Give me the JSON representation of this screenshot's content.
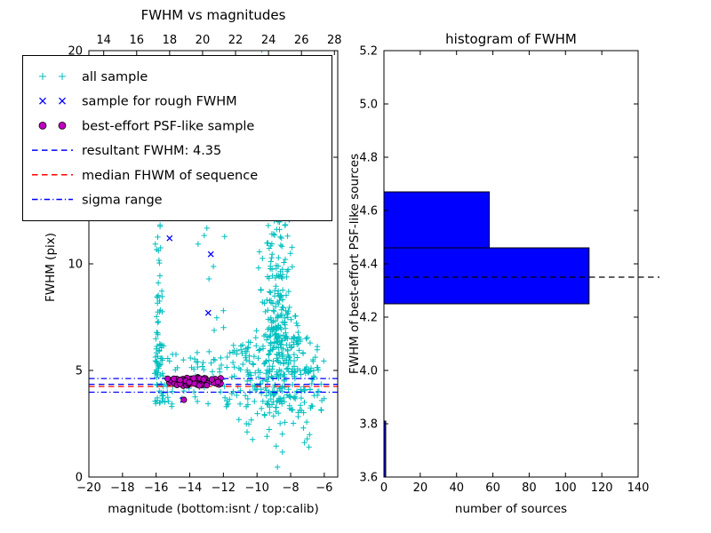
{
  "figure": {
    "background": "#ffffff"
  },
  "chart_data": [
    {
      "type": "scatter",
      "title": "FWHM vs magnitudes",
      "xlabel": "magnitude (bottom:isnt / top:calib)",
      "ylabel": "FWHM (pix)",
      "xlim": [
        -20,
        -5.2
      ],
      "top_xlim": [
        13.1,
        28.2
      ],
      "ylim": [
        0,
        20
      ],
      "x_ticks_bottom": [
        {
          "v": -20,
          "label": "−20"
        },
        {
          "v": -18,
          "label": "−18"
        },
        {
          "v": -16,
          "label": "−16"
        },
        {
          "v": -14,
          "label": "−14"
        },
        {
          "v": -12,
          "label": "−12"
        },
        {
          "v": -10,
          "label": "−10"
        },
        {
          "v": -8,
          "label": "−8"
        },
        {
          "v": -6,
          "label": "−6"
        }
      ],
      "x_ticks_top": [
        {
          "v": 14,
          "label": "14"
        },
        {
          "v": 16,
          "label": "16"
        },
        {
          "v": 18,
          "label": "18"
        },
        {
          "v": 20,
          "label": "20"
        },
        {
          "v": 22,
          "label": "22"
        },
        {
          "v": 24,
          "label": "24"
        },
        {
          "v": 26,
          "label": "26"
        },
        {
          "v": 28,
          "label": "28"
        }
      ],
      "y_ticks": [
        {
          "v": 0,
          "label": "0"
        },
        {
          "v": 5,
          "label": "5"
        },
        {
          "v": 10,
          "label": "10"
        },
        {
          "v": 15,
          "label": "15"
        },
        {
          "v": 20,
          "label": "20"
        }
      ],
      "legend": {
        "items": [
          {
            "label": "all sample",
            "type": "marker",
            "marker": "plus",
            "color": "#00bfbf"
          },
          {
            "label": "sample for rough FWHM",
            "type": "marker",
            "marker": "x",
            "color": "#0000ff"
          },
          {
            "label": "best-effort PSF-like sample",
            "type": "marker",
            "marker": "circle",
            "color": "#bf00bf"
          },
          {
            "label": "resultant FWHM: 4.35",
            "type": "line",
            "dash": "dashed",
            "color": "#0000ff"
          },
          {
            "label": "median FHWM of sequence",
            "type": "line",
            "dash": "dashed",
            "color": "#ff0000"
          },
          {
            "label": "sigma range",
            "type": "line",
            "dash": "dashdot",
            "color": "#0000ff"
          }
        ]
      },
      "hlines": [
        {
          "y": 4.35,
          "style": "dashed",
          "color": "#0000ff"
        },
        {
          "y": 4.25,
          "style": "dashed",
          "color": "#ff0000"
        },
        {
          "y": 4.62,
          "style": "dashdot",
          "color": "#0000ff"
        },
        {
          "y": 3.98,
          "style": "dashdot",
          "color": "#0000ff"
        }
      ],
      "scatter": {
        "seed": 42,
        "all_sample_color": "#00bfbf",
        "all_sample_clusters": [
          {
            "shape": "uniform",
            "x": [
              -16.08,
              -15.55
            ],
            "y": [
              3.4,
              6.5
            ],
            "n": 55
          },
          {
            "shape": "uniform",
            "x": [
              -16.05,
              -15.6
            ],
            "y": [
              6.5,
              12.5
            ],
            "n": 30
          },
          {
            "shape": "uniform",
            "x": [
              -16.0,
              -15.65
            ],
            "y": [
              12.5,
              19.9
            ],
            "n": 9
          },
          {
            "shape": "uniform",
            "x": [
              -15.55,
              -12.0
            ],
            "y": [
              3.3,
              5.9
            ],
            "n": 55
          },
          {
            "shape": "uniform",
            "x": [
              -12.0,
              -9.9
            ],
            "y": [
              3.2,
              6.3
            ],
            "n": 55
          },
          {
            "shape": "gauss",
            "cx": -8.75,
            "cy": 6.3,
            "sx": 0.6,
            "sy": 2.0,
            "n": 270
          },
          {
            "shape": "gauss",
            "cx": -8.95,
            "cy": 13.5,
            "sx": 0.45,
            "sy": 3.2,
            "n": 110
          },
          {
            "shape": "uniform",
            "x": [
              -10.7,
              -6.1
            ],
            "y": [
              3.0,
              6.6
            ],
            "n": 85
          },
          {
            "shape": "gauss",
            "cx": -7.1,
            "cy": 4.4,
            "sx": 0.75,
            "sy": 0.9,
            "n": 45
          },
          {
            "shape": "uniform",
            "x": [
              -11.6,
              -6.3
            ],
            "y": [
              1.3,
              3.0
            ],
            "n": 13
          },
          {
            "shape": "uniform",
            "x": [
              -13.6,
              -11.6
            ],
            "y": [
              6.5,
              12.5
            ],
            "n": 12
          },
          {
            "shape": "uniform",
            "x": [
              -12.7,
              -10.4
            ],
            "y": [
              13.0,
              19.9
            ],
            "n": 9
          }
        ],
        "rough_fwhm_color": "#0000ff",
        "rough_fwhm_points": [
          [
            -15.2,
            11.2
          ],
          [
            -12.75,
            10.45
          ],
          [
            -12.9,
            7.7
          ],
          [
            -14.4,
            3.62
          ],
          [
            -13.8,
            4.5
          ],
          [
            -14.9,
            4.45
          ],
          [
            -13.0,
            4.4
          ]
        ],
        "psf_sample": {
          "color": "#bf00bf",
          "x": [
            -15.35,
            -12.15
          ],
          "y": [
            4.28,
            4.68
          ],
          "n": 58,
          "outliers": [
            [
              -14.35,
              3.62
            ]
          ]
        }
      }
    },
    {
      "type": "bar",
      "orientation": "horizontal",
      "title": "histogram of FWHM",
      "xlabel": "number of sources",
      "ylabel": "FWHM of best-effort PSF-like sources",
      "xlim": [
        0,
        140
      ],
      "ylim": [
        3.6,
        5.2
      ],
      "bar_fill": "#0000ff",
      "x_ticks": [
        {
          "v": 0,
          "label": "0"
        },
        {
          "v": 20,
          "label": "20"
        },
        {
          "v": 40,
          "label": "40"
        },
        {
          "v": 60,
          "label": "60"
        },
        {
          "v": 80,
          "label": "80"
        },
        {
          "v": 100,
          "label": "100"
        },
        {
          "v": 120,
          "label": "120"
        },
        {
          "v": 140,
          "label": "140"
        }
      ],
      "y_ticks": [
        {
          "v": 3.6,
          "label": "3.6"
        },
        {
          "v": 3.8,
          "label": "3.8"
        },
        {
          "v": 4.0,
          "label": "4.0"
        },
        {
          "v": 4.2,
          "label": "4.2"
        },
        {
          "v": 4.4,
          "label": "4.4"
        },
        {
          "v": 4.6,
          "label": "4.6"
        },
        {
          "v": 4.8,
          "label": "4.8"
        },
        {
          "v": 5.0,
          "label": "5.0"
        },
        {
          "v": 5.2,
          "label": "5.2"
        }
      ],
      "bins": [
        {
          "y0": 3.6,
          "y1": 3.81,
          "count": 1
        },
        {
          "y0": 4.25,
          "y1": 4.46,
          "count": 113
        },
        {
          "y0": 4.46,
          "y1": 4.67,
          "count": 58
        }
      ],
      "median_line": {
        "y": 4.35,
        "style": "dashed",
        "color": "#000000"
      }
    }
  ]
}
